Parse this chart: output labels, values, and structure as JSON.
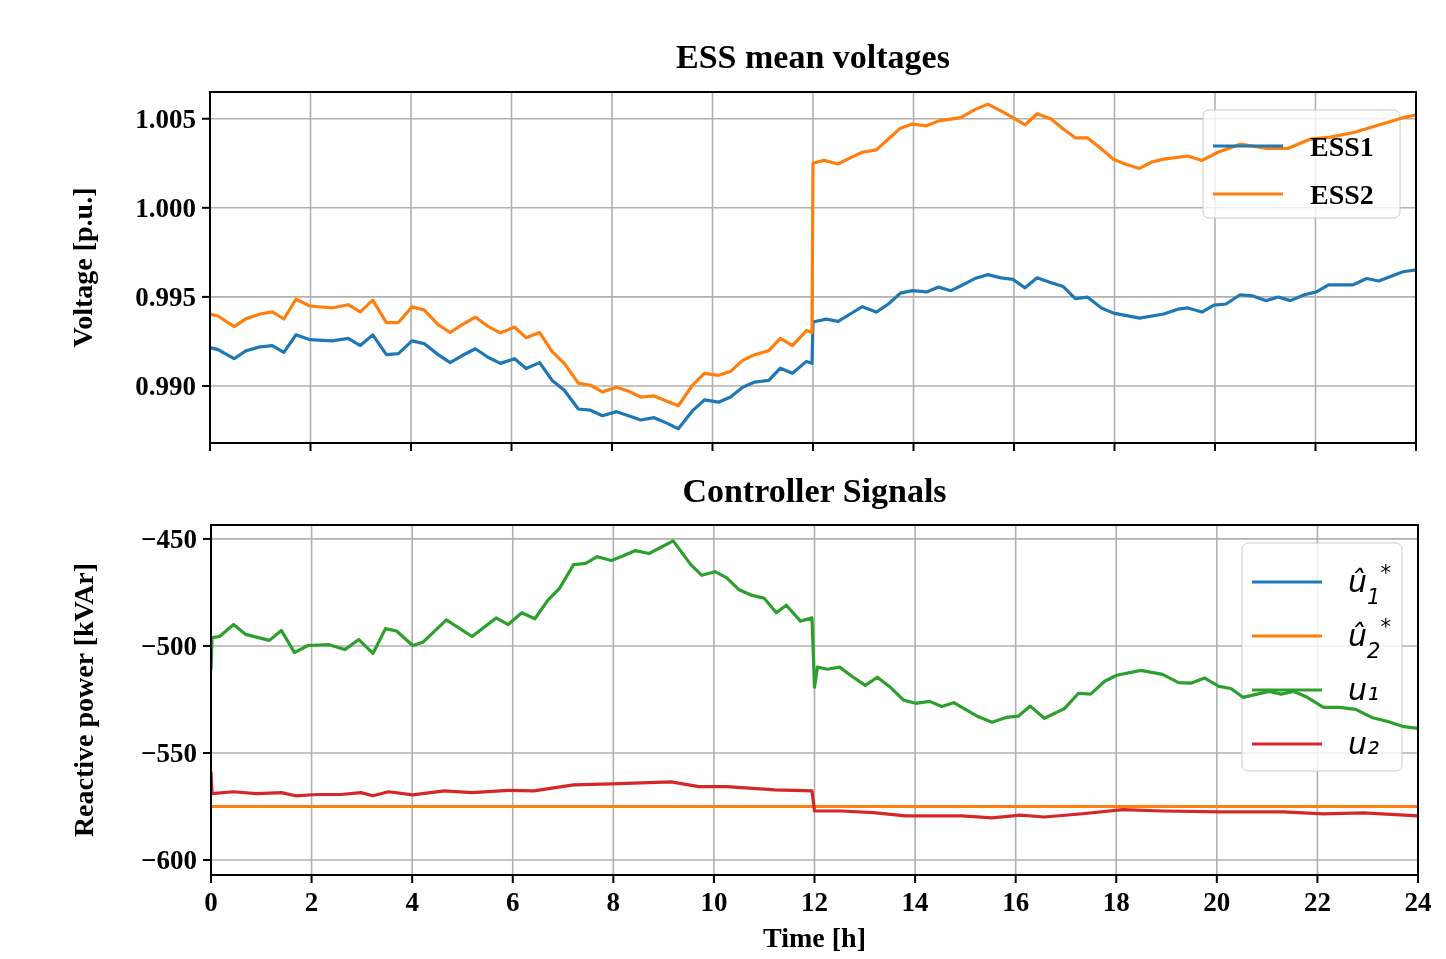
{
  "chart_data": [
    {
      "type": "line",
      "title": "ESS mean voltages",
      "ylabel": "Voltage [p.u.]",
      "xlim": [
        0,
        24
      ],
      "xticks": [
        0,
        2,
        4,
        6,
        8,
        10,
        12,
        14,
        16,
        18,
        20,
        22,
        24
      ],
      "ylim": [
        0.9868,
        1.0065
      ],
      "yticks": [
        {
          "value": 0.99,
          "label": "0.990"
        },
        {
          "value": 0.995,
          "label": "0.995"
        },
        {
          "value": 1.0,
          "label": "1.000"
        },
        {
          "value": 1.005,
          "label": "1.005"
        }
      ],
      "tick_labels": "y",
      "grid": true,
      "legend": "top right",
      "line_style": "solid",
      "marker": "none",
      "series": [
        {
          "name": "ESS1",
          "color": "#1f77b4",
          "x": [
            0,
            0.16,
            0.48,
            0.72,
            1.0,
            1.24,
            1.47,
            1.71,
            1.99,
            2.43,
            2.75,
            2.99,
            3.24,
            3.51,
            3.75,
            4.02,
            4.26,
            4.54,
            4.78,
            5.02,
            5.28,
            5.54,
            5.78,
            6.06,
            6.29,
            6.56,
            6.81,
            7.05,
            7.33,
            7.57,
            7.81,
            8.09,
            8.33,
            8.57,
            8.84,
            9.08,
            9.32,
            9.6,
            9.84,
            10.12,
            10.36,
            10.6,
            10.84,
            11.12,
            11.35,
            11.59,
            11.87,
            11.98,
            12,
            12.26,
            12.5,
            12.74,
            12.98,
            13.26,
            13.5,
            13.74,
            13.98,
            14.26,
            14.5,
            14.74,
            14.98,
            15.22,
            15.48,
            15.74,
            15.98,
            16.22,
            16.46,
            16.74,
            16.98,
            17.22,
            17.46,
            17.74,
            17.98,
            18.5,
            18.98,
            19.26,
            19.46,
            19.74,
            19.98,
            20.22,
            20.5,
            20.74,
            21.02,
            21.26,
            21.5,
            21.78,
            22.02,
            22.26,
            22.74,
            23.02,
            23.26,
            23.74,
            24
          ],
          "values": [
            0.99216,
            0.99204,
            0.99153,
            0.99198,
            0.9922,
            0.99227,
            0.99189,
            0.99287,
            0.9926,
            0.99253,
            0.99267,
            0.99227,
            0.99287,
            0.99176,
            0.99182,
            0.99253,
            0.99238,
            0.99176,
            0.99131,
            0.99171,
            0.99209,
            0.9916,
            0.99127,
            0.99153,
            0.99098,
            0.99131,
            0.99031,
            0.98976,
            0.98871,
            0.98864,
            0.98833,
            0.98856,
            0.98833,
            0.98809,
            0.98822,
            0.98793,
            0.9876,
            0.9886,
            0.98922,
            0.98909,
            0.98938,
            0.98993,
            0.99022,
            0.99031,
            0.991,
            0.99071,
            0.99138,
            0.99127,
            0.99359,
            0.99375,
            0.99363,
            0.99404,
            0.99445,
            0.99415,
            0.9946,
            0.99521,
            0.99535,
            0.99528,
            0.99555,
            0.99535,
            0.99567,
            0.99603,
            0.99625,
            0.99607,
            0.99598,
            0.99551,
            0.99607,
            0.9958,
            0.99558,
            0.9949,
            0.99499,
            0.99438,
            0.99409,
            0.99381,
            0.99404,
            0.99431,
            0.99438,
            0.99415,
            0.99454,
            0.9946,
            0.99512,
            0.99506,
            0.99479,
            0.99499,
            0.99479,
            0.99512,
            0.99528,
            0.99567,
            0.99567,
            0.99603,
            0.99589,
            0.99641,
            0.99652
          ]
        },
        {
          "name": "ESS2",
          "color": "#ff7f0e",
          "x": [
            0,
            0.16,
            0.48,
            0.72,
            1.0,
            1.24,
            1.47,
            1.71,
            1.99,
            2.43,
            2.75,
            2.99,
            3.24,
            3.51,
            3.75,
            4.02,
            4.26,
            4.54,
            4.78,
            5.02,
            5.28,
            5.54,
            5.78,
            6.06,
            6.29,
            6.56,
            6.81,
            7.05,
            7.33,
            7.57,
            7.81,
            8.09,
            8.33,
            8.57,
            8.84,
            9.08,
            9.32,
            9.6,
            9.84,
            10.12,
            10.36,
            10.6,
            10.84,
            11.12,
            11.35,
            11.59,
            11.87,
            11.98,
            12,
            12.22,
            12.5,
            12.74,
            12.98,
            13.26,
            13.5,
            13.74,
            13.98,
            14.26,
            14.5,
            14.94,
            15.22,
            15.48,
            15.74,
            15.98,
            16.22,
            16.46,
            16.74,
            16.98,
            17.22,
            17.46,
            17.74,
            17.98,
            18.22,
            18.5,
            18.74,
            18.98,
            19.46,
            19.74,
            20.06,
            20.5,
            21.02,
            21.46,
            21.9,
            22.3,
            22.78,
            23.26,
            23.74,
            24
          ],
          "values": [
            0.99404,
            0.99393,
            0.99333,
            0.99378,
            0.99404,
            0.99416,
            0.99376,
            0.99487,
            0.99449,
            0.99438,
            0.99456,
            0.99416,
            0.99482,
            0.99356,
            0.99356,
            0.99444,
            0.99427,
            0.99344,
            0.993,
            0.99344,
            0.99387,
            0.99333,
            0.99298,
            0.99331,
            0.99271,
            0.993,
            0.99193,
            0.99127,
            0.99016,
            0.99004,
            0.98967,
            0.98993,
            0.98971,
            0.98938,
            0.98944,
            0.98916,
            0.98889,
            0.99004,
            0.99071,
            0.9906,
            0.99082,
            0.99144,
            0.99176,
            0.99198,
            0.99267,
            0.99227,
            0.99311,
            0.993,
            1.0025,
            1.00266,
            1.00246,
            1.0028,
            1.00312,
            1.00325,
            1.00386,
            1.00447,
            1.0047,
            1.0046,
            1.00488,
            1.00506,
            1.00551,
            1.00582,
            1.00544,
            1.00506,
            1.00465,
            1.00528,
            1.00499,
            1.00442,
            1.00393,
            1.00393,
            1.0033,
            1.00273,
            1.00244,
            1.00221,
            1.00257,
            1.00273,
            1.00291,
            1.00266,
            1.00312,
            1.00357,
            1.00334,
            1.00334,
            1.00386,
            1.00397,
            1.00424,
            1.00465,
            1.00506,
            1.00521
          ]
        }
      ]
    },
    {
      "type": "line",
      "title": "Controller Signals",
      "xlabel": "Time [h]",
      "ylabel": "Reactive power [kVAr]",
      "xlim": [
        0,
        24
      ],
      "xticks": [
        0,
        2,
        4,
        6,
        8,
        10,
        12,
        14,
        16,
        18,
        20,
        22,
        24
      ],
      "ylim": [
        -607,
        -443.5
      ],
      "yticks": [
        {
          "value": -450,
          "label": "−450"
        },
        {
          "value": -500,
          "label": "−500"
        },
        {
          "value": -550,
          "label": "−550"
        },
        {
          "value": -600,
          "label": "−600"
        }
      ],
      "grid": true,
      "legend": "top right",
      "line_style": "solid",
      "marker": "none",
      "series": [
        {
          "name": "û$_{1}$$^{*}$",
          "color": "#1f77b4"
        },
        {
          "name": "û$_{2}$$^{*}$",
          "color": "#ff7f0e",
          "x": [
            0,
            24
          ],
          "values": [
            -575,
            -575
          ]
        },
        {
          "name": "u₁",
          "color": "#2ca02c",
          "x": [
            0,
            0.02,
            0.17,
            0.45,
            0.69,
            1.16,
            1.4,
            1.66,
            1.93,
            2.35,
            2.66,
            2.94,
            3.22,
            3.47,
            3.69,
            4.01,
            4.21,
            4.68,
            5.19,
            5.67,
            5.91,
            6.18,
            6.44,
            6.7,
            6.93,
            7.21,
            7.45,
            7.68,
            7.96,
            8.2,
            8.43,
            8.71,
            9.19,
            9.54,
            9.76,
            10.02,
            10.25,
            10.49,
            10.76,
            11.0,
            11.24,
            11.44,
            11.72,
            11.95,
            12.0,
            12.06,
            12.26,
            12.5,
            12.77,
            13.01,
            13.25,
            13.49,
            13.77,
            14.01,
            14.29,
            14.53,
            14.77,
            15.25,
            15.53,
            15.81,
            16.05,
            16.29,
            16.57,
            16.97,
            17.25,
            17.49,
            17.77,
            18.01,
            18.49,
            18.92,
            19.24,
            19.48,
            19.76,
            20.04,
            20.28,
            20.52,
            21.04,
            21.28,
            21.52,
            21.8,
            22.12,
            22.44,
            22.76,
            23.08,
            23.4,
            23.72,
            24
          ],
          "values": [
            -511,
            -496.1,
            -495.6,
            -490,
            -494.6,
            -497.4,
            -492.8,
            -503.1,
            -499.8,
            -499.4,
            -501.7,
            -497,
            -503.5,
            -491.9,
            -493,
            -499.8,
            -498.3,
            -487.8,
            -495.6,
            -486.9,
            -490,
            -484.5,
            -487.3,
            -478.6,
            -473.1,
            -462,
            -461.4,
            -458.3,
            -460.1,
            -457.9,
            -455.5,
            -456.8,
            -450.9,
            -462,
            -467,
            -465.3,
            -468.1,
            -473.6,
            -476.4,
            -477.7,
            -484.5,
            -481,
            -488.4,
            -486.9,
            -519.3,
            -509.9,
            -510.9,
            -509.9,
            -514.6,
            -518.4,
            -514.6,
            -518.9,
            -525.3,
            -526.8,
            -525.9,
            -528.3,
            -526.5,
            -533,
            -535.6,
            -533.4,
            -532.8,
            -528.1,
            -533.8,
            -529.3,
            -522.1,
            -522.5,
            -516.5,
            -513.7,
            -511.4,
            -513.3,
            -517.1,
            -517.4,
            -515,
            -518.9,
            -519.9,
            -524,
            -521.2,
            -522.5,
            -521.2,
            -524,
            -528.7,
            -528.7,
            -529.6,
            -533.4,
            -535.3,
            -537.7,
            -538.5
          ]
        },
        {
          "name": "u₂",
          "color": "#d62728",
          "x": [
            0,
            0.02,
            0.45,
            0.92,
            1.4,
            1.68,
            2.11,
            2.58,
            2.98,
            3.22,
            3.53,
            4.01,
            4.64,
            5.19,
            5.91,
            6.42,
            7.21,
            7.96,
            9.15,
            9.7,
            10.25,
            11.2,
            11.95,
            12.0,
            12.54,
            13.17,
            13.81,
            14.93,
            15.53,
            16.09,
            16.57,
            17.33,
            18.13,
            18.92,
            20.04,
            21.32,
            22.12,
            22.92,
            24
          ],
          "values": [
            -559,
            -569,
            -568.1,
            -569,
            -568.5,
            -570,
            -569.4,
            -569.4,
            -568.5,
            -570,
            -568.1,
            -569.6,
            -567.7,
            -568.5,
            -567.5,
            -567.7,
            -564.9,
            -564.4,
            -563.5,
            -565.7,
            -565.7,
            -567.2,
            -567.7,
            -577.1,
            -577.1,
            -577.9,
            -579.4,
            -579.4,
            -580.3,
            -579,
            -579.9,
            -578.4,
            -576.5,
            -577.1,
            -577.5,
            -577.5,
            -578.4,
            -578,
            -579.4
          ]
        }
      ]
    }
  ]
}
